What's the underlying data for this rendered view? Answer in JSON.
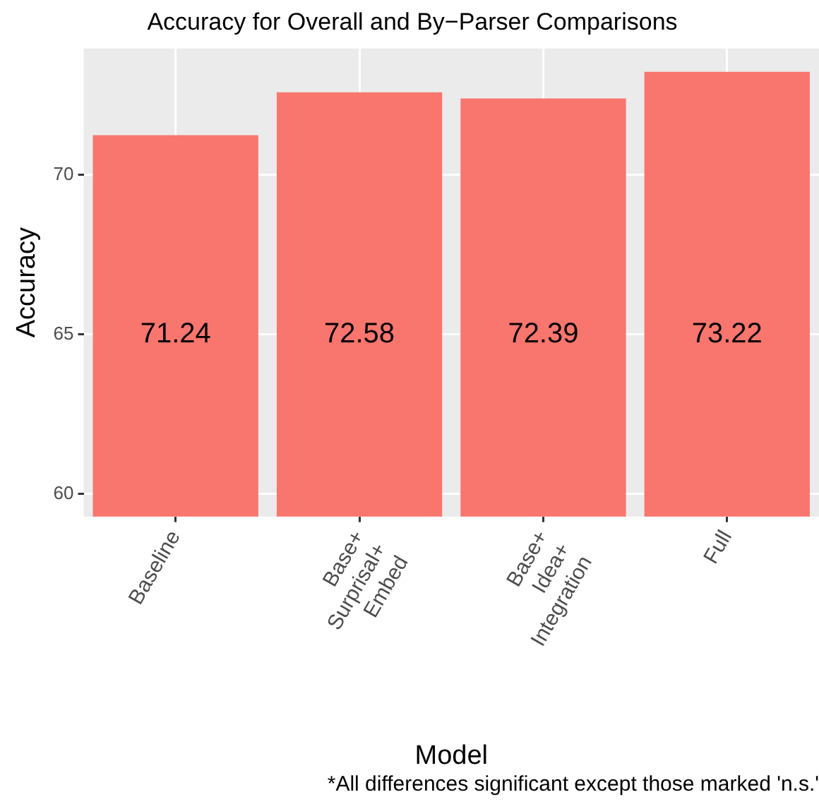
{
  "chart_data": {
    "type": "bar",
    "title": "Accuracy for Overall and By−Parser Comparisons",
    "xlabel": "Model",
    "ylabel": "Accuracy",
    "categories": [
      "Baseline",
      "Base+\nSurprisal+\nEmbed",
      "Base+\nIdea+\nIntegration",
      "Full"
    ],
    "values": [
      71.24,
      72.58,
      72.39,
      73.22
    ],
    "color": "#f8766d",
    "data_labels": true,
    "ylim": [
      59.3,
      73.95
    ],
    "yticks": [
      60,
      65,
      70
    ],
    "grid": true,
    "annotations": [
      "*All differences significant except those marked 'n.s.'"
    ]
  }
}
